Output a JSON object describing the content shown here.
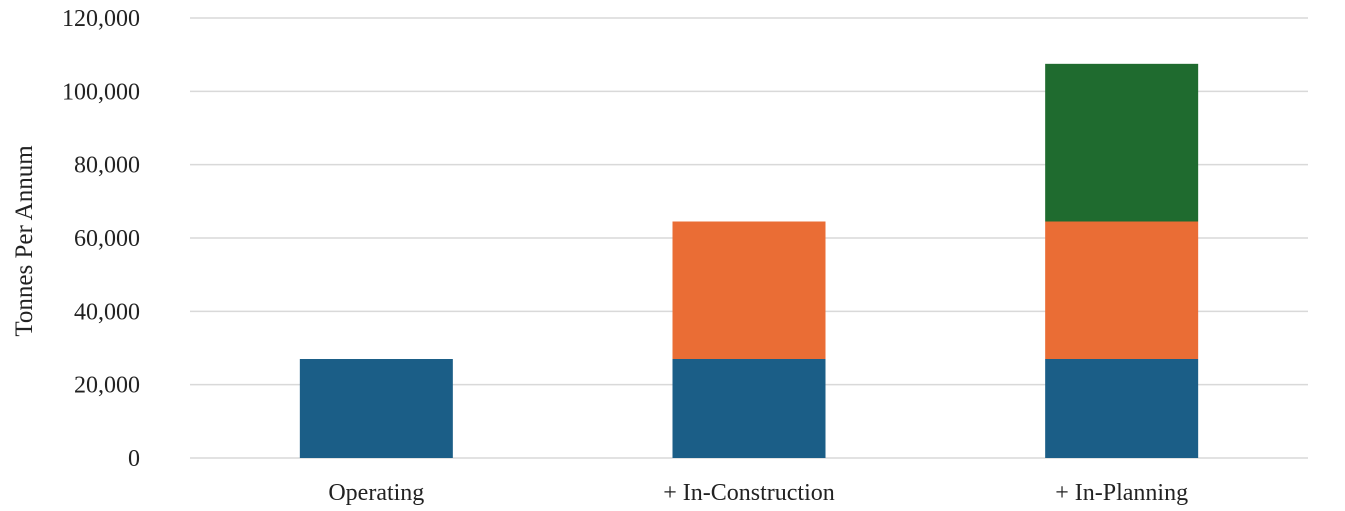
{
  "chart_data": {
    "type": "bar",
    "stacked": true,
    "title": "",
    "xlabel": "",
    "ylabel": "Tonnes Per Annum",
    "ylim": [
      0,
      120000
    ],
    "yticks": [
      0,
      20000,
      40000,
      60000,
      80000,
      100000,
      120000
    ],
    "ytick_labels": [
      "0",
      "20,000",
      "40,000",
      "60,000",
      "80,000",
      "100,000",
      "120,000"
    ],
    "categories": [
      "Operating",
      "+ In-Construction",
      "+ In-Planning"
    ],
    "series": [
      {
        "color": "#1b5e87",
        "values": [
          27000,
          27000,
          27000
        ]
      },
      {
        "color": "#ea6d35",
        "values": [
          0,
          37500,
          37500
        ]
      },
      {
        "color": "#1f6b2f",
        "values": [
          0,
          0,
          43000
        ]
      }
    ],
    "grid": true,
    "legend": "none"
  }
}
